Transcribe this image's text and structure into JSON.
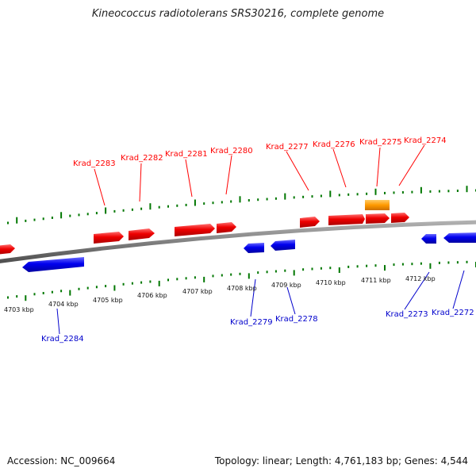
{
  "title": "Kineococcus radiotolerans SRS30216, complete genome",
  "footer": {
    "accession": "Accession: NC_009664",
    "summary": "Topology: linear; Length: 4,761,183 bp; Genes: 4,544"
  },
  "colors": {
    "forward_gene": "#ff0000",
    "reverse_gene": "#0000ff",
    "rna_gene": "#ff9900",
    "tick": "#007700",
    "backbone": "#808080"
  },
  "kbp_scale": {
    "labels": [
      "4703 kbp",
      "4704 kbp",
      "4705 kbp",
      "4706 kbp",
      "4707 kbp",
      "4708 kbp",
      "4709 kbp",
      "4710 kbp",
      "4711 kbp",
      "4712 kbp"
    ]
  },
  "genes_forward": [
    {
      "label": "Krad_2283"
    },
    {
      "label": "Krad_2282"
    },
    {
      "label": "Krad_2281"
    },
    {
      "label": "Krad_2280"
    },
    {
      "label": "Krad_2277"
    },
    {
      "label": "Krad_2276"
    },
    {
      "label": "Krad_2275"
    },
    {
      "label": "Krad_2274"
    }
  ],
  "genes_reverse": [
    {
      "label": "Krad_2284"
    },
    {
      "label": "Krad_2279"
    },
    {
      "label": "Krad_2278"
    },
    {
      "label": "Krad_2273"
    },
    {
      "label": "Krad_2272"
    }
  ]
}
